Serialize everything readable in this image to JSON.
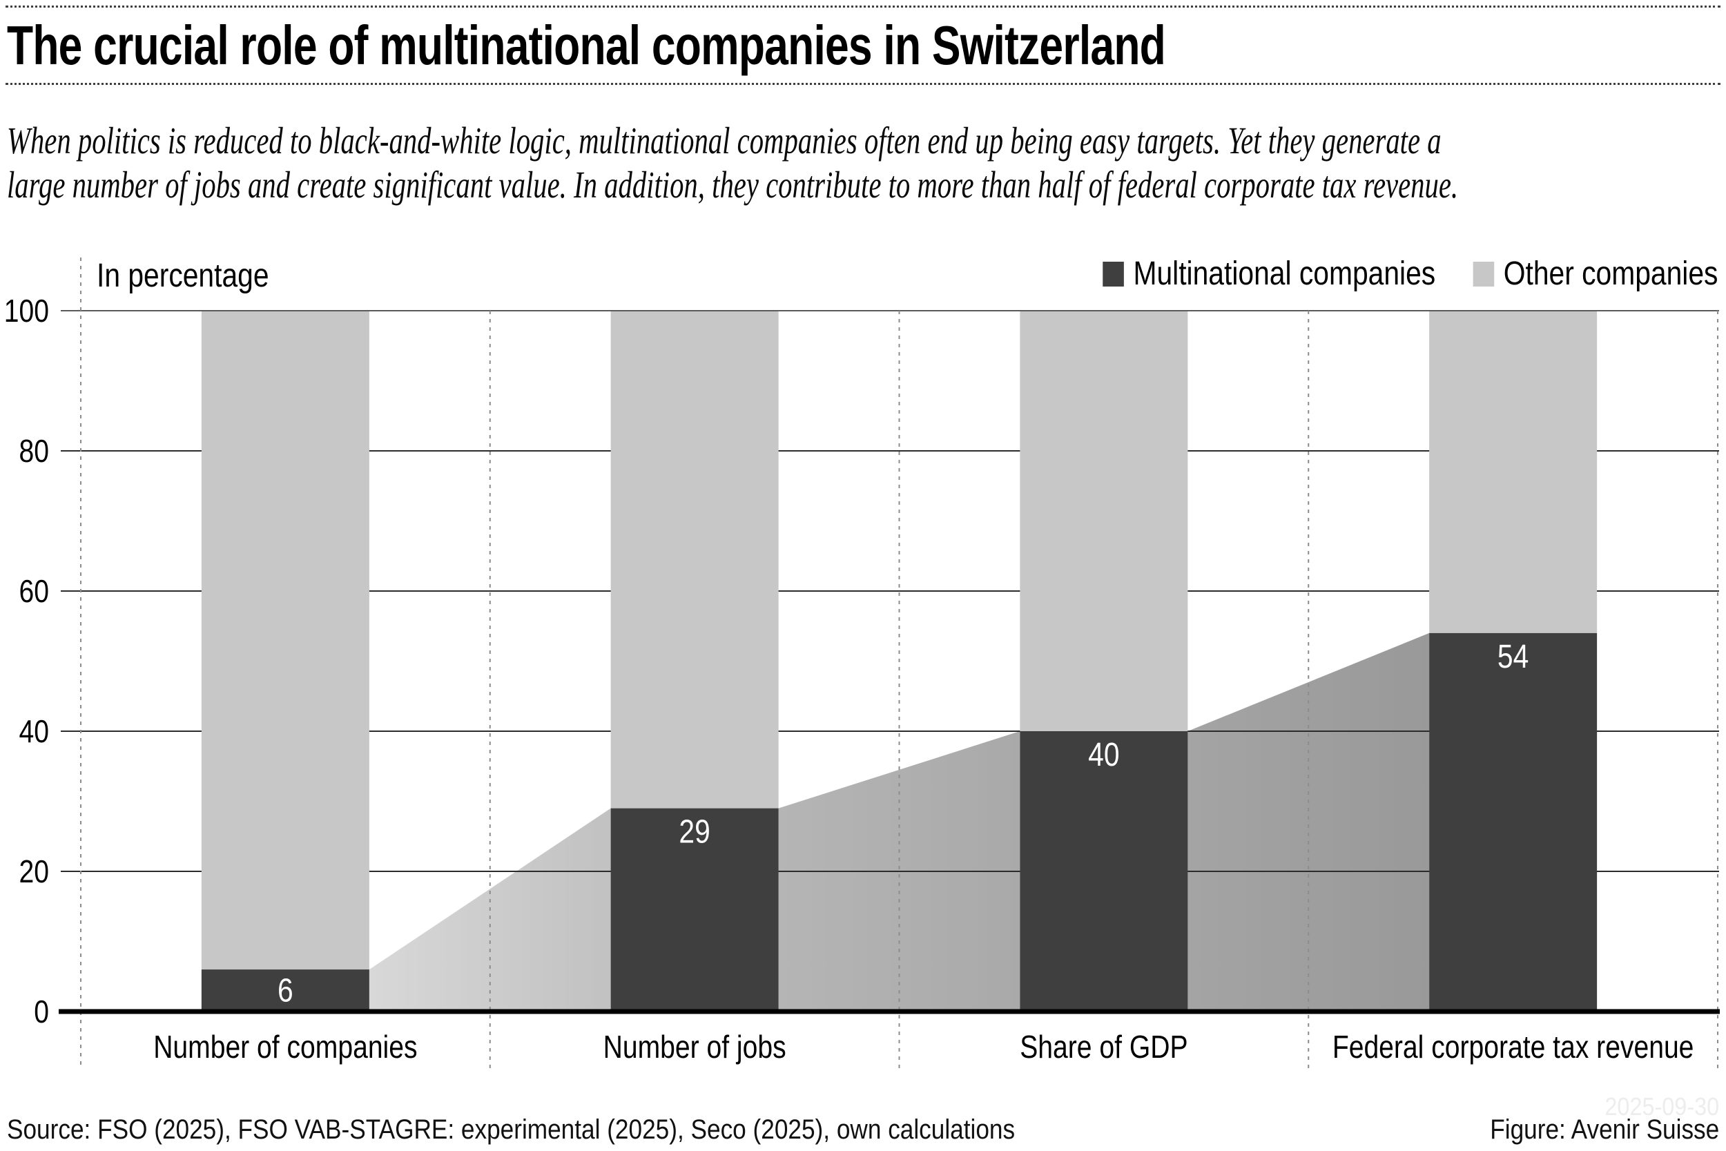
{
  "header": {
    "title": "The crucial role of multinational companies in Switzerland",
    "subtitle_line1": "When politics is reduced to black-and-white logic, multinational companies often end up being easy targets. Yet they generate a",
    "subtitle_line2": "large number of jobs and create significant value. In addition, they contribute to more than half of federal corporate tax revenue."
  },
  "legend": {
    "items": [
      {
        "label": "Multinational companies",
        "color": "#3f3f3f"
      },
      {
        "label": "Other companies",
        "color": "#c7c7c7"
      }
    ]
  },
  "chart_data": {
    "type": "bar",
    "stacked": true,
    "title": "The crucial role of multinational companies in Switzerland",
    "unit_label": "In percentage",
    "categories": [
      "Number of companies",
      "Number of jobs",
      "Share of GDP",
      "Federal corporate tax revenue"
    ],
    "series": [
      {
        "name": "Multinational companies",
        "values": [
          6,
          29,
          40,
          54
        ],
        "color": "#3f3f3f"
      },
      {
        "name": "Other companies",
        "values": [
          94,
          71,
          60,
          46
        ],
        "color": "#c7c7c7"
      }
    ],
    "value_labels": [
      "6",
      "29",
      "40",
      "54"
    ],
    "ylim": [
      0,
      100
    ],
    "yticks": [
      0,
      20,
      40,
      60,
      80,
      100
    ],
    "grid": "horizontal",
    "legend_position": "top-right",
    "connector_gradients": [
      [
        "#d8d8d8",
        "#c1c1c1"
      ],
      [
        "#b5b5b5",
        "#a9a9a9"
      ],
      [
        "#a4a4a4",
        "#999999"
      ]
    ],
    "gridline_color": "#2b2b2b",
    "top_gridline_color": "#5a5a5a",
    "separator_color": "#8c8c8c",
    "axis_color": "#000000"
  },
  "footer": {
    "source": "Source: FSO (2025), FSO VAB-STAGRE: experimental (2025), Seco (2025), own calculations",
    "figure_credit": "Figure: Avenir Suisse",
    "watermark": "2025-09-30"
  }
}
